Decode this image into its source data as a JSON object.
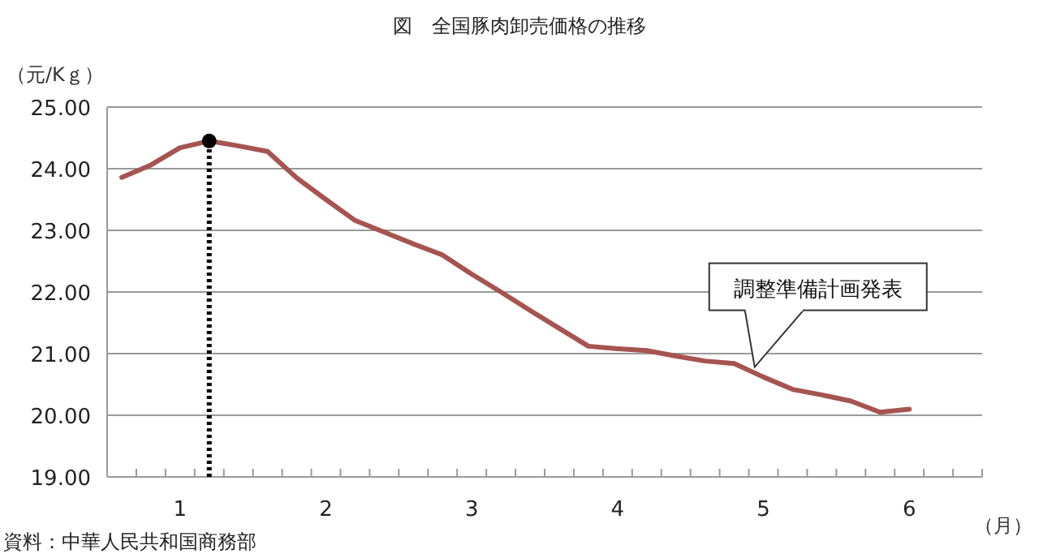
{
  "chart_data": {
    "type": "line",
    "title": "図　全国豚肉卸売価格の推移",
    "ylabel": "（元/Kｇ）",
    "xlabel": "（月）",
    "annotations": [
      "調整準備計画発表",
      "資料：中華人民共和国商務部"
    ],
    "series": [
      {
        "color": "#a65450",
        "x": [
          0.6,
          0.8,
          1,
          1.2,
          1.4,
          1.6,
          1.8,
          2,
          2.2,
          2.4,
          2.6,
          2.8,
          3,
          3.2,
          3.4,
          3.6,
          3.8,
          4,
          4.2,
          4.4,
          4.6,
          4.8,
          5,
          5.2,
          5.4,
          5.6,
          5.8,
          6
        ],
        "values": [
          23.86,
          24.06,
          24.34,
          24.45,
          24.37,
          24.28,
          23.85,
          23.5,
          23.16,
          22.97,
          22.78,
          22.6,
          22.29,
          22.0,
          21.7,
          21.41,
          21.12,
          21.08,
          21.05,
          20.96,
          20.88,
          20.84,
          20.62,
          20.42,
          20.33,
          20.23,
          20.05,
          20.1
        ]
      },
      {
        "type": "lollipop",
        "color": "#000000",
        "line_style": "dotted",
        "marker": "circle",
        "x": [
          1.2
        ],
        "values": [
          24.45
        ]
      }
    ],
    "xlim": [
      0.5,
      6.5
    ],
    "ylim": [
      19,
      25
    ],
    "xticks": [
      1,
      2,
      3,
      4,
      5,
      6,
      {
        "value": 0.5,
        "label": null
      },
      {
        "value": 0.7,
        "label": null
      },
      {
        "value": 0.9,
        "label": null
      },
      {
        "value": 1.1,
        "label": null
      },
      {
        "value": 1.3,
        "label": null
      },
      {
        "value": 1.5,
        "label": null
      },
      {
        "value": 1.7,
        "label": null
      },
      {
        "value": 1.9,
        "label": null
      },
      {
        "value": 2.1,
        "label": null
      },
      {
        "value": 2.3,
        "label": null
      },
      {
        "value": 2.5,
        "label": null
      },
      {
        "value": 2.7,
        "label": null
      },
      {
        "value": 2.9,
        "label": null
      },
      {
        "value": 3.1,
        "label": null
      },
      {
        "value": 3.3,
        "label": null
      },
      {
        "value": 3.5,
        "label": null
      },
      {
        "value": 3.7,
        "label": null
      },
      {
        "value": 3.9,
        "label": null
      },
      {
        "value": 4.1,
        "label": null
      },
      {
        "value": 4.3,
        "label": null
      },
      {
        "value": 4.5,
        "label": null
      },
      {
        "value": 4.7,
        "label": null
      },
      {
        "value": 4.9,
        "label": null
      },
      {
        "value": 5.1,
        "label": null
      },
      {
        "value": 5.3,
        "label": null
      },
      {
        "value": 5.5,
        "label": null
      },
      {
        "value": 5.7,
        "label": null
      },
      {
        "value": 5.9,
        "label": null
      },
      {
        "value": 6.1,
        "label": null
      },
      {
        "value": 6.3,
        "label": null
      },
      {
        "value": 6.5,
        "label": null
      }
    ],
    "yticks": [
      {
        "value": 19,
        "label": "19.00"
      },
      {
        "value": 20,
        "label": "20.00"
      },
      {
        "value": 21,
        "label": "21.00"
      },
      {
        "value": 22,
        "label": "22.00"
      },
      {
        "value": 23,
        "label": "23.00"
      },
      {
        "value": 24,
        "label": "24.00"
      },
      {
        "value": 25,
        "label": "25.00"
      }
    ],
    "grid": "y"
  }
}
